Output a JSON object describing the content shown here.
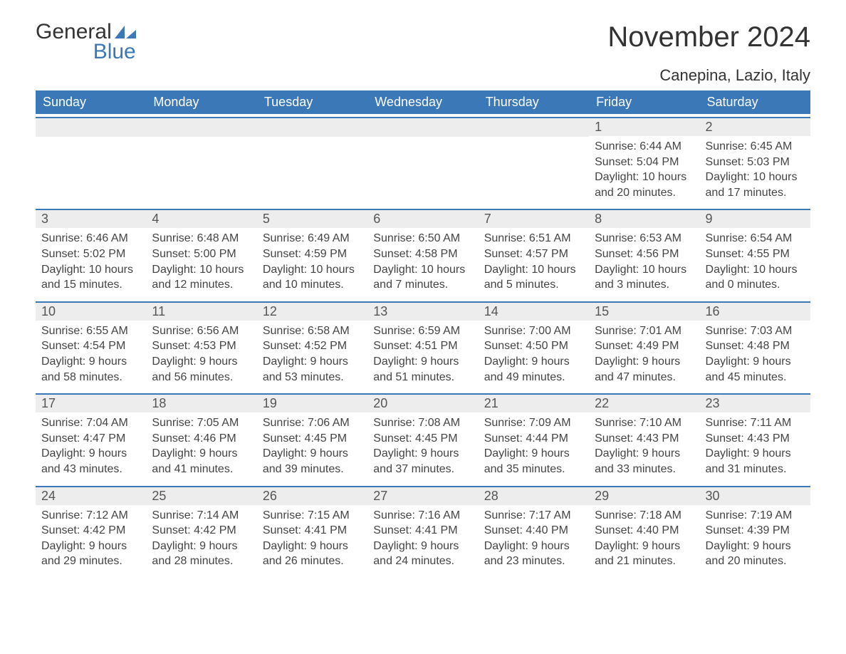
{
  "logo": {
    "word1": "General",
    "word2": "Blue",
    "icon_color": "#3b78b8"
  },
  "title": "November 2024",
  "location": "Canepina, Lazio, Italy",
  "colors": {
    "header_bg": "#3b78b8",
    "header_text": "#ffffff",
    "cell_border": "#3b78b8",
    "daynum_bg": "#ededed",
    "text": "#333333"
  },
  "typography": {
    "title_fontsize": 40,
    "location_fontsize": 22,
    "header_fontsize": 18,
    "daynum_fontsize": 18,
    "body_fontsize": 16,
    "font_family": "Arial"
  },
  "columns": [
    "Sunday",
    "Monday",
    "Tuesday",
    "Wednesday",
    "Thursday",
    "Friday",
    "Saturday"
  ],
  "weeks": [
    [
      null,
      null,
      null,
      null,
      null,
      {
        "day": "1",
        "sunrise": "6:44 AM",
        "sunset": "5:04 PM",
        "daylight": "10 hours and 20 minutes."
      },
      {
        "day": "2",
        "sunrise": "6:45 AM",
        "sunset": "5:03 PM",
        "daylight": "10 hours and 17 minutes."
      }
    ],
    [
      {
        "day": "3",
        "sunrise": "6:46 AM",
        "sunset": "5:02 PM",
        "daylight": "10 hours and 15 minutes."
      },
      {
        "day": "4",
        "sunrise": "6:48 AM",
        "sunset": "5:00 PM",
        "daylight": "10 hours and 12 minutes."
      },
      {
        "day": "5",
        "sunrise": "6:49 AM",
        "sunset": "4:59 PM",
        "daylight": "10 hours and 10 minutes."
      },
      {
        "day": "6",
        "sunrise": "6:50 AM",
        "sunset": "4:58 PM",
        "daylight": "10 hours and 7 minutes."
      },
      {
        "day": "7",
        "sunrise": "6:51 AM",
        "sunset": "4:57 PM",
        "daylight": "10 hours and 5 minutes."
      },
      {
        "day": "8",
        "sunrise": "6:53 AM",
        "sunset": "4:56 PM",
        "daylight": "10 hours and 3 minutes."
      },
      {
        "day": "9",
        "sunrise": "6:54 AM",
        "sunset": "4:55 PM",
        "daylight": "10 hours and 0 minutes."
      }
    ],
    [
      {
        "day": "10",
        "sunrise": "6:55 AM",
        "sunset": "4:54 PM",
        "daylight": "9 hours and 58 minutes."
      },
      {
        "day": "11",
        "sunrise": "6:56 AM",
        "sunset": "4:53 PM",
        "daylight": "9 hours and 56 minutes."
      },
      {
        "day": "12",
        "sunrise": "6:58 AM",
        "sunset": "4:52 PM",
        "daylight": "9 hours and 53 minutes."
      },
      {
        "day": "13",
        "sunrise": "6:59 AM",
        "sunset": "4:51 PM",
        "daylight": "9 hours and 51 minutes."
      },
      {
        "day": "14",
        "sunrise": "7:00 AM",
        "sunset": "4:50 PM",
        "daylight": "9 hours and 49 minutes."
      },
      {
        "day": "15",
        "sunrise": "7:01 AM",
        "sunset": "4:49 PM",
        "daylight": "9 hours and 47 minutes."
      },
      {
        "day": "16",
        "sunrise": "7:03 AM",
        "sunset": "4:48 PM",
        "daylight": "9 hours and 45 minutes."
      }
    ],
    [
      {
        "day": "17",
        "sunrise": "7:04 AM",
        "sunset": "4:47 PM",
        "daylight": "9 hours and 43 minutes."
      },
      {
        "day": "18",
        "sunrise": "7:05 AM",
        "sunset": "4:46 PM",
        "daylight": "9 hours and 41 minutes."
      },
      {
        "day": "19",
        "sunrise": "7:06 AM",
        "sunset": "4:45 PM",
        "daylight": "9 hours and 39 minutes."
      },
      {
        "day": "20",
        "sunrise": "7:08 AM",
        "sunset": "4:45 PM",
        "daylight": "9 hours and 37 minutes."
      },
      {
        "day": "21",
        "sunrise": "7:09 AM",
        "sunset": "4:44 PM",
        "daylight": "9 hours and 35 minutes."
      },
      {
        "day": "22",
        "sunrise": "7:10 AM",
        "sunset": "4:43 PM",
        "daylight": "9 hours and 33 minutes."
      },
      {
        "day": "23",
        "sunrise": "7:11 AM",
        "sunset": "4:43 PM",
        "daylight": "9 hours and 31 minutes."
      }
    ],
    [
      {
        "day": "24",
        "sunrise": "7:12 AM",
        "sunset": "4:42 PM",
        "daylight": "9 hours and 29 minutes."
      },
      {
        "day": "25",
        "sunrise": "7:14 AM",
        "sunset": "4:42 PM",
        "daylight": "9 hours and 28 minutes."
      },
      {
        "day": "26",
        "sunrise": "7:15 AM",
        "sunset": "4:41 PM",
        "daylight": "9 hours and 26 minutes."
      },
      {
        "day": "27",
        "sunrise": "7:16 AM",
        "sunset": "4:41 PM",
        "daylight": "9 hours and 24 minutes."
      },
      {
        "day": "28",
        "sunrise": "7:17 AM",
        "sunset": "4:40 PM",
        "daylight": "9 hours and 23 minutes."
      },
      {
        "day": "29",
        "sunrise": "7:18 AM",
        "sunset": "4:40 PM",
        "daylight": "9 hours and 21 minutes."
      },
      {
        "day": "30",
        "sunrise": "7:19 AM",
        "sunset": "4:39 PM",
        "daylight": "9 hours and 20 minutes."
      }
    ]
  ],
  "labels": {
    "sunrise": "Sunrise: ",
    "sunset": "Sunset: ",
    "daylight": "Daylight: "
  }
}
